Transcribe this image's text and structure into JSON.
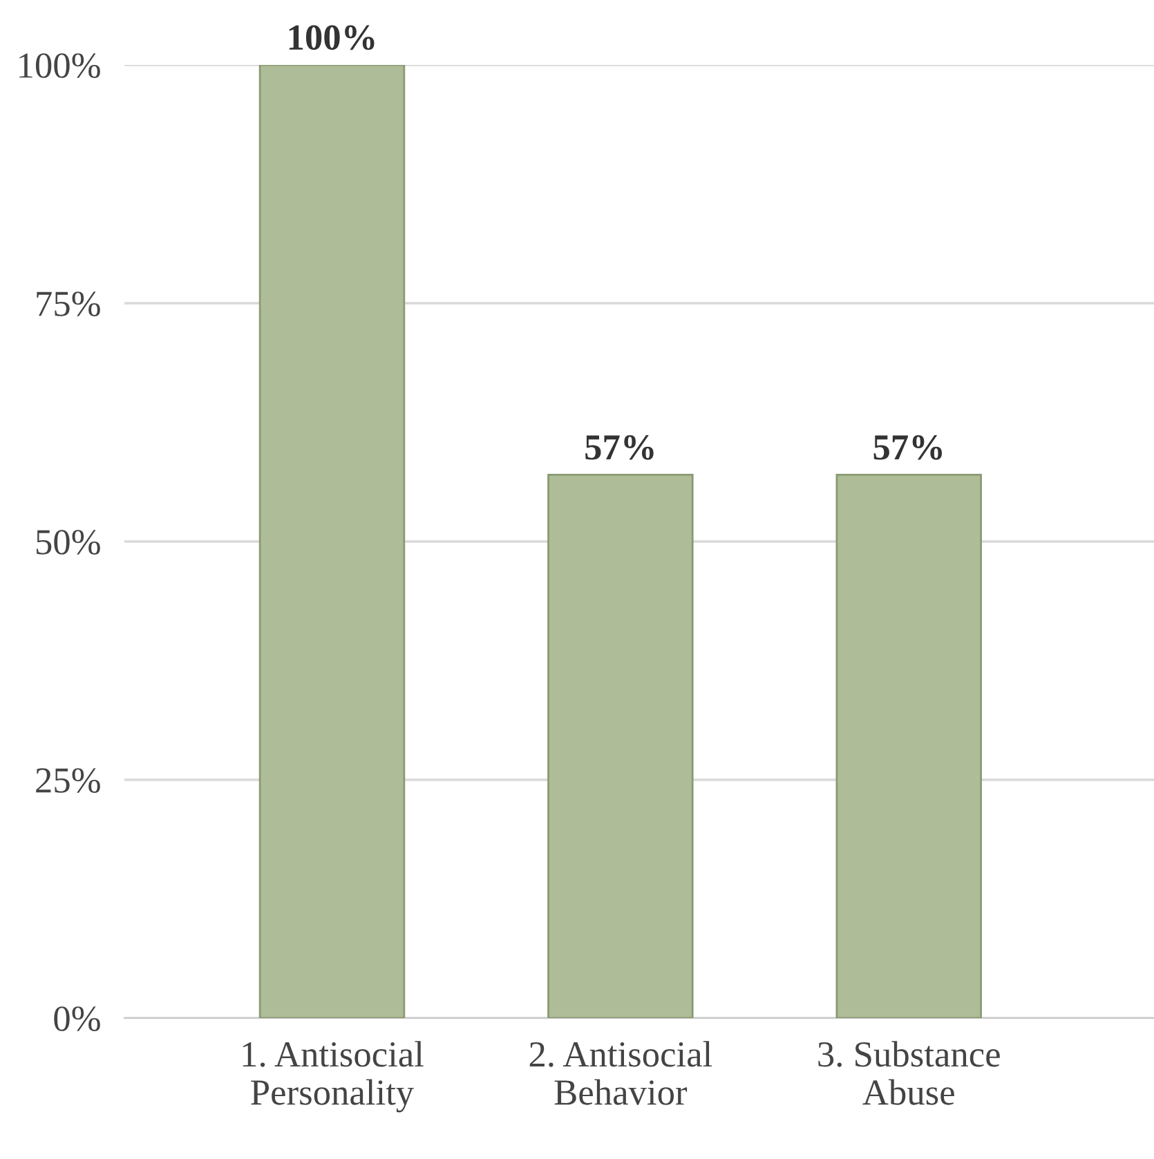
{
  "chart_data": {
    "type": "bar",
    "categories": [
      "1. Antisocial\nPersonality",
      "2. Antisocial\nBehavior",
      "3. Substance\nAbuse"
    ],
    "values": [
      100,
      57,
      57
    ],
    "color": "#aebc98",
    "value_labels": [
      "100%",
      "57%",
      "57%"
    ],
    "ylim": [
      0,
      100
    ],
    "yticks": [
      {
        "value": 0,
        "label": "0%"
      },
      {
        "value": 25,
        "label": "25%"
      },
      {
        "value": 50,
        "label": "50%"
      },
      {
        "value": 75,
        "label": "75%"
      },
      {
        "value": 100,
        "label": "100%"
      }
    ],
    "grid": "y",
    "legend": false
  }
}
